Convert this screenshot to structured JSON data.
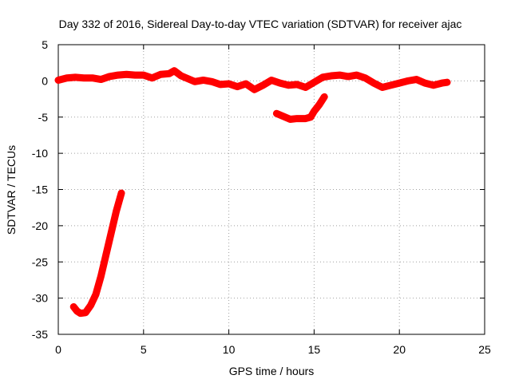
{
  "chart_data": {
    "type": "line",
    "title": "Day 332 of 2016, Sidereal Day-to-day VTEC variation (SDTVAR) for receiver ajac",
    "xlabel": "GPS time / hours",
    "ylabel": "SDTVAR / TECUs",
    "xlim": [
      0,
      25
    ],
    "ylim": [
      -35,
      5
    ],
    "xticks": [
      0,
      5,
      10,
      15,
      20,
      25
    ],
    "yticks": [
      5,
      0,
      -5,
      -10,
      -15,
      -20,
      -25,
      -30,
      -35
    ],
    "grid": true,
    "color": "#ff0000",
    "series": [
      {
        "name": "main",
        "x": [
          0.0,
          0.5,
          1.0,
          1.5,
          2.0,
          2.5,
          3.0,
          3.5,
          4.0,
          4.5,
          5.0,
          5.5,
          6.0,
          6.5,
          6.8,
          7.2,
          7.6,
          8.0,
          8.5,
          9.0,
          9.5,
          10.0,
          10.5,
          11.0,
          11.5,
          12.0,
          12.5,
          13.0,
          13.5,
          14.0,
          14.5,
          15.0,
          15.5,
          16.0,
          16.5,
          17.0,
          17.5,
          18.0,
          18.5,
          19.0,
          19.5,
          20.0,
          20.5,
          21.0,
          21.5,
          22.0,
          22.5,
          22.8
        ],
        "y": [
          0.1,
          0.4,
          0.5,
          0.4,
          0.4,
          0.2,
          0.6,
          0.8,
          0.9,
          0.8,
          0.8,
          0.4,
          0.9,
          1.0,
          1.4,
          0.7,
          0.3,
          -0.1,
          0.1,
          -0.1,
          -0.5,
          -0.4,
          -0.8,
          -0.4,
          -1.2,
          -0.6,
          0.1,
          -0.3,
          -0.6,
          -0.5,
          -0.9,
          -0.2,
          0.5,
          0.7,
          0.8,
          0.6,
          0.8,
          0.4,
          -0.3,
          -0.9,
          -0.6,
          -0.3,
          0.0,
          0.2,
          -0.3,
          -0.6,
          -0.3,
          -0.2
        ]
      },
      {
        "name": "arc-middle",
        "x": [
          12.8,
          13.2,
          13.6,
          14.0,
          14.5,
          14.8,
          15.0,
          15.3,
          15.6
        ],
        "y": [
          -4.5,
          -4.9,
          -5.3,
          -5.2,
          -5.2,
          -5.0,
          -4.2,
          -3.3,
          -2.2
        ]
      },
      {
        "name": "arc-early",
        "x": [
          0.9,
          1.1,
          1.3,
          1.6,
          1.9,
          2.2,
          2.5,
          2.8,
          3.1,
          3.4,
          3.7
        ],
        "y": [
          -31.2,
          -31.8,
          -32.1,
          -32.0,
          -31.0,
          -29.5,
          -27.0,
          -24.0,
          -21.0,
          -18.0,
          -15.5
        ]
      }
    ]
  }
}
